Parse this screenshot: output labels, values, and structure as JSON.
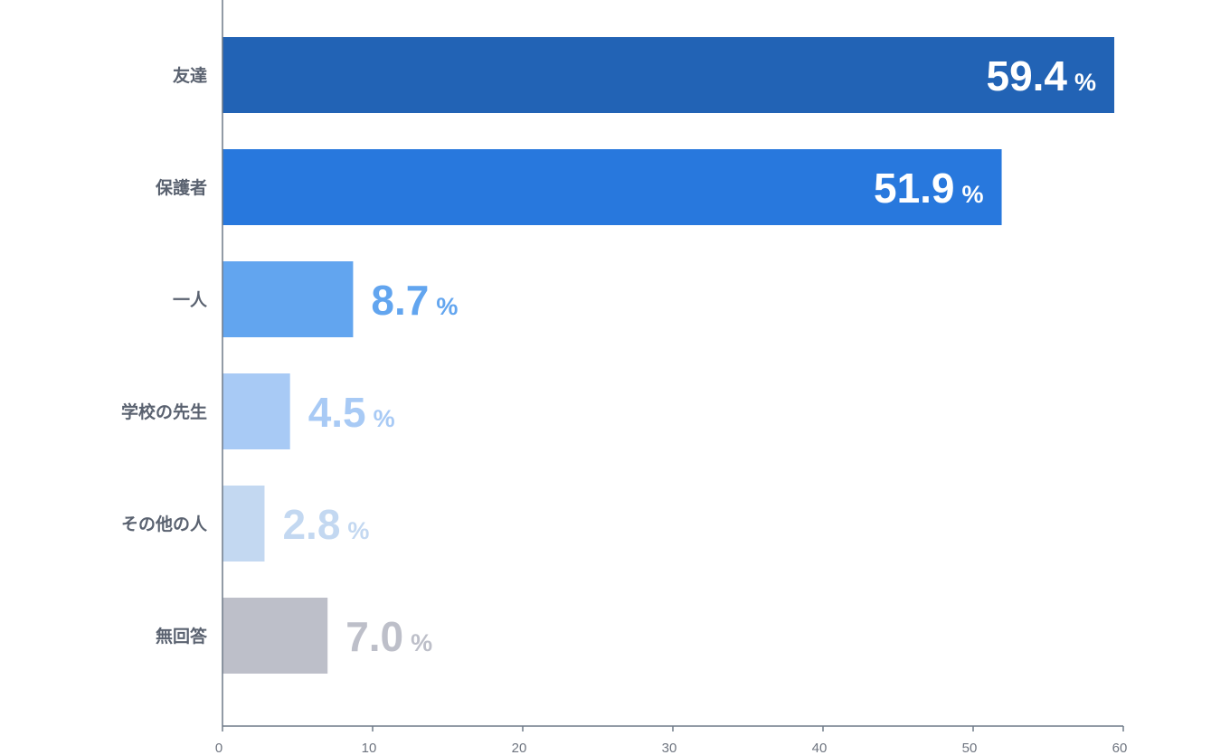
{
  "chart_data": {
    "type": "bar",
    "orientation": "horizontal",
    "categories": [
      "友達",
      "保護者",
      "一人",
      "学校の先生",
      "その他の人",
      "無回答"
    ],
    "values": [
      59.4,
      51.9,
      8.7,
      4.5,
      2.8,
      7.0
    ],
    "value_labels": [
      "59.4",
      "51.9",
      "8.7",
      "4.5",
      "2.8",
      "7.0"
    ],
    "unit": "%",
    "colors": [
      "#2263b5",
      "#2878dd",
      "#62a5ef",
      "#a8caf5",
      "#c3d8f1",
      "#bdbfc9"
    ],
    "label_inside": [
      true,
      true,
      false,
      false,
      false,
      false
    ],
    "xlim": [
      0,
      60
    ],
    "xticks": [
      0,
      10,
      20,
      30,
      40,
      50,
      60
    ],
    "title": "",
    "xlabel": "",
    "ylabel": "",
    "grid": false,
    "axis_color": "#6f7a88"
  }
}
